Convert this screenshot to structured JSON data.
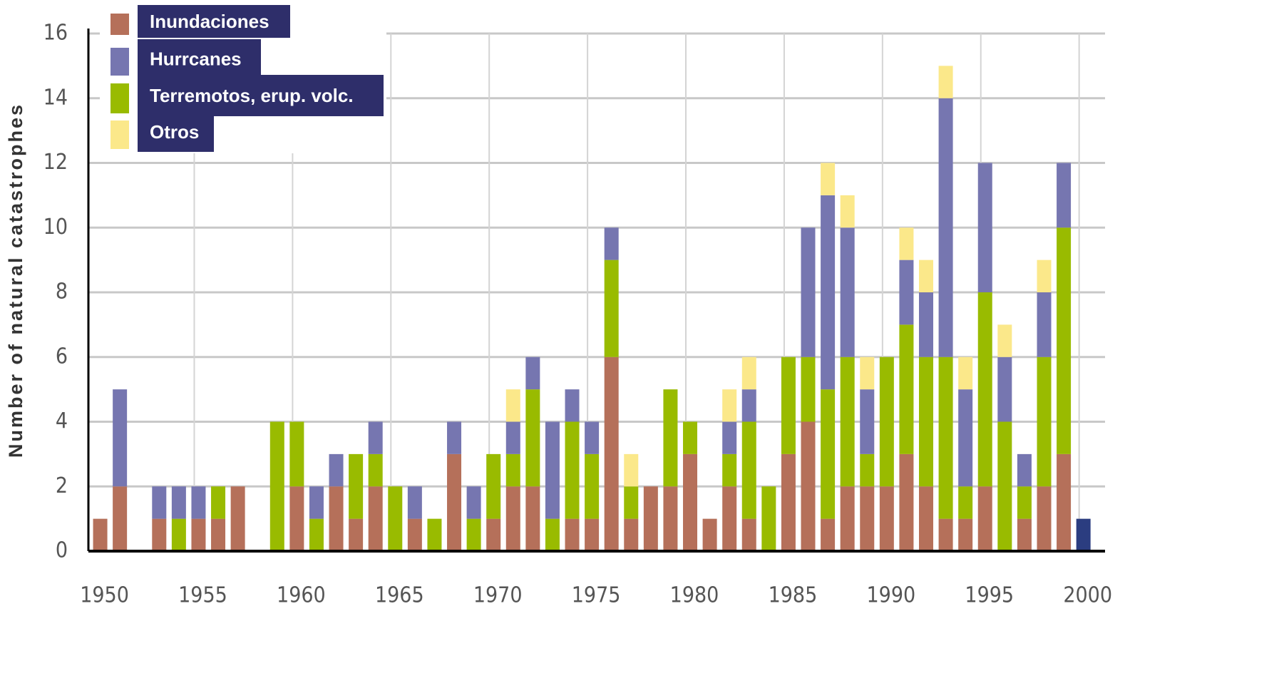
{
  "chart_data": {
    "type": "stacked_bar",
    "y_label": "Number of natural catastrophes",
    "x": [
      1950,
      1951,
      1952,
      1953,
      1954,
      1955,
      1956,
      1957,
      1958,
      1959,
      1960,
      1961,
      1962,
      1963,
      1964,
      1965,
      1966,
      1967,
      1968,
      1969,
      1970,
      1971,
      1972,
      1973,
      1974,
      1975,
      1976,
      1977,
      1978,
      1979,
      1980,
      1981,
      1982,
      1983,
      1984,
      1985,
      1986,
      1987,
      1988,
      1989,
      1990,
      1991,
      1992,
      1993,
      1994,
      1995,
      1996,
      1997,
      1998,
      1999,
      2000
    ],
    "series": [
      {
        "name": "Inundaciones",
        "color": "#b5705a",
        "values": [
          1,
          2,
          0,
          1,
          0,
          1,
          1,
          2,
          0,
          0,
          2,
          0,
          2,
          1,
          2,
          0,
          1,
          0,
          3,
          0,
          1,
          2,
          2,
          0,
          1,
          1,
          6,
          1,
          2,
          2,
          3,
          1,
          2,
          1,
          0,
          3,
          4,
          1,
          2,
          2,
          2,
          3,
          2,
          1,
          1,
          2,
          0,
          1,
          2,
          3,
          0
        ]
      },
      {
        "name": "Hurrcanes",
        "color": "#7676b0",
        "values": [
          0,
          3,
          0,
          1,
          1,
          1,
          0,
          0,
          0,
          0,
          0,
          1,
          1,
          0,
          1,
          0,
          1,
          0,
          1,
          1,
          0,
          1,
          1,
          3,
          1,
          1,
          1,
          0,
          0,
          0,
          0,
          0,
          1,
          1,
          0,
          0,
          4,
          6,
          4,
          2,
          0,
          2,
          2,
          8,
          3,
          4,
          2,
          1,
          2,
          2,
          1
        ]
      },
      {
        "name": "Terremotos, erup. volc.",
        "color": "#99bb00",
        "values": [
          0,
          0,
          0,
          0,
          1,
          0,
          1,
          0,
          0,
          4,
          2,
          1,
          0,
          2,
          1,
          2,
          0,
          1,
          0,
          1,
          2,
          1,
          3,
          1,
          3,
          2,
          3,
          1,
          0,
          3,
          1,
          0,
          1,
          3,
          2,
          3,
          2,
          4,
          4,
          1,
          4,
          4,
          4,
          5,
          1,
          6,
          4,
          1,
          4,
          7,
          0
        ]
      },
      {
        "name": "Otros",
        "color": "#fbe88a",
        "values": [
          0,
          0,
          0,
          0,
          0,
          0,
          0,
          0,
          0,
          0,
          0,
          0,
          0,
          0,
          0,
          0,
          0,
          0,
          0,
          0,
          0,
          1,
          0,
          0,
          0,
          0,
          0,
          1,
          0,
          0,
          0,
          0,
          1,
          1,
          0,
          0,
          0,
          1,
          1,
          1,
          0,
          1,
          1,
          1,
          1,
          0,
          1,
          0,
          1,
          0,
          0
        ]
      }
    ],
    "highlight": {
      "index": 50,
      "color": "#2b3d80"
    },
    "xlim": [
      1949.4,
      2001.1
    ],
    "xticks": [
      1950,
      1955,
      1960,
      1965,
      1970,
      1975,
      1980,
      1985,
      1990,
      1995,
      2000
    ],
    "ylim": [
      0,
      16
    ],
    "yticks": [
      0,
      2,
      4,
      6,
      8,
      10,
      12,
      14,
      16
    ],
    "grid": true,
    "legend": "top-left"
  }
}
